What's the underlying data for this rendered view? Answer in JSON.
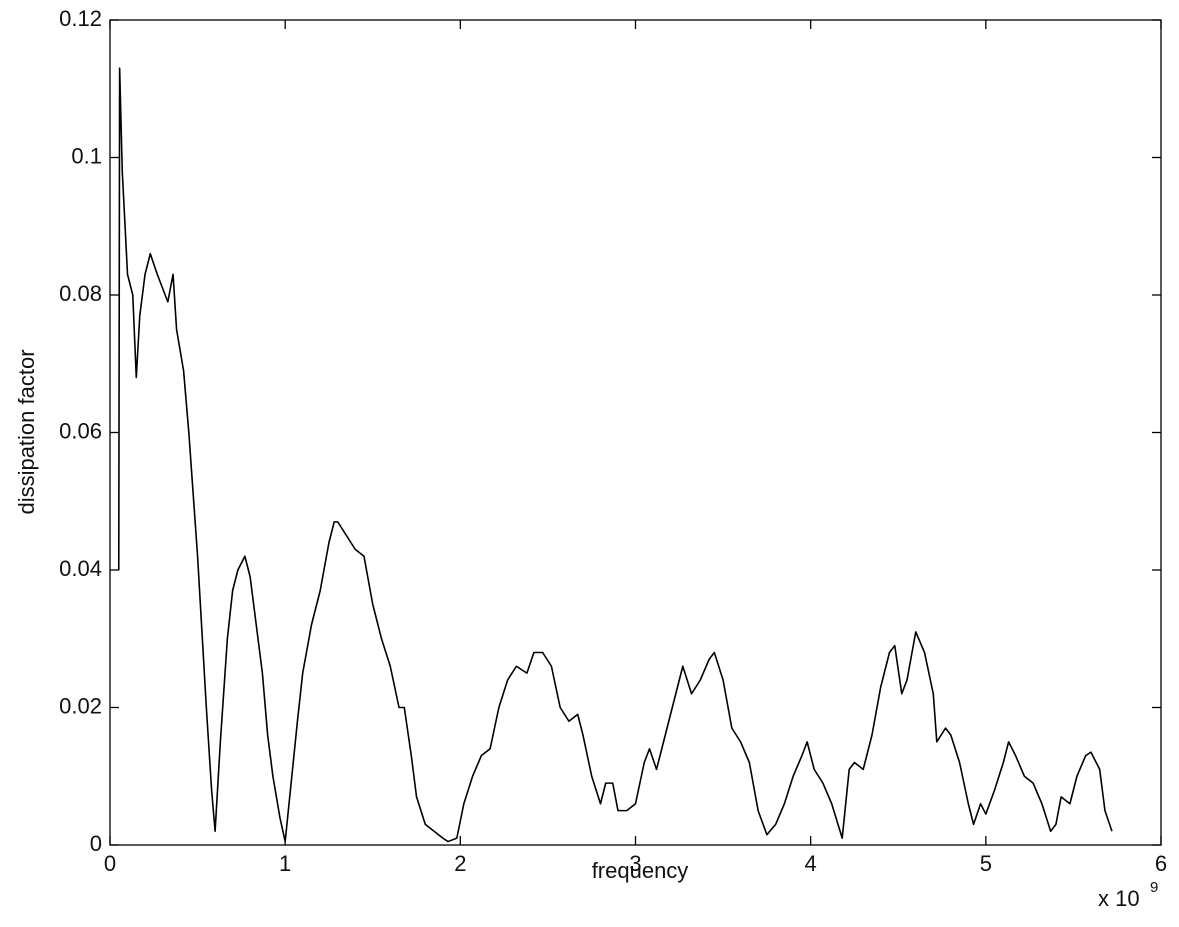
{
  "chart_data": {
    "type": "line",
    "xlabel": "frequency",
    "ylabel": "dissipation factor",
    "x_scale_base": "x 10",
    "x_scale_exponent": "9",
    "xlim": [
      0,
      6
    ],
    "xticks": [
      0,
      1,
      2,
      3,
      4,
      5,
      6
    ],
    "ylim": [
      0,
      0.12
    ],
    "yticks": [
      0,
      0.02,
      0.04,
      0.06,
      0.08,
      0.1,
      0.12
    ],
    "grid": false,
    "color": "#000000",
    "x": [
      0.05,
      0.055,
      0.07,
      0.1,
      0.13,
      0.15,
      0.17,
      0.2,
      0.23,
      0.27,
      0.3,
      0.33,
      0.36,
      0.38,
      0.42,
      0.45,
      0.5,
      0.55,
      0.58,
      0.6,
      0.63,
      0.67,
      0.7,
      0.73,
      0.77,
      0.8,
      0.83,
      0.87,
      0.9,
      0.93,
      0.97,
      1.0,
      1.03,
      1.07,
      1.1,
      1.15,
      1.2,
      1.25,
      1.28,
      1.3,
      1.35,
      1.4,
      1.45,
      1.5,
      1.55,
      1.6,
      1.65,
      1.68,
      1.72,
      1.75,
      1.8,
      1.85,
      1.9,
      1.93,
      1.98,
      2.02,
      2.07,
      2.12,
      2.17,
      2.22,
      2.27,
      2.32,
      2.38,
      2.42,
      2.47,
      2.52,
      2.57,
      2.62,
      2.67,
      2.7,
      2.75,
      2.8,
      2.83,
      2.87,
      2.9,
      2.95,
      3.0,
      3.05,
      3.08,
      3.12,
      3.17,
      3.22,
      3.27,
      3.32,
      3.37,
      3.42,
      3.45,
      3.5,
      3.55,
      3.6,
      3.65,
      3.7,
      3.75,
      3.8,
      3.85,
      3.9,
      3.95,
      3.98,
      4.02,
      4.07,
      4.12,
      4.18,
      4.22,
      4.25,
      4.3,
      4.35,
      4.4,
      4.45,
      4.48,
      4.52,
      4.55,
      4.6,
      4.65,
      4.7,
      4.72,
      4.77,
      4.8,
      4.85,
      4.9,
      4.93,
      4.97,
      5.0,
      5.05,
      5.1,
      5.13,
      5.17,
      5.22,
      5.27,
      5.32,
      5.37,
      5.4,
      5.43,
      5.48,
      5.52,
      5.57,
      5.6,
      5.65,
      5.68,
      5.72
    ],
    "values": [
      0.04,
      0.113,
      0.098,
      0.083,
      0.08,
      0.068,
      0.077,
      0.083,
      0.086,
      0.083,
      0.081,
      0.079,
      0.083,
      0.075,
      0.069,
      0.06,
      0.042,
      0.02,
      0.008,
      0.002,
      0.015,
      0.03,
      0.037,
      0.04,
      0.042,
      0.039,
      0.033,
      0.025,
      0.016,
      0.01,
      0.004,
      0.0005,
      0.008,
      0.018,
      0.025,
      0.032,
      0.037,
      0.044,
      0.047,
      0.047,
      0.045,
      0.043,
      0.042,
      0.035,
      0.03,
      0.026,
      0.02,
      0.02,
      0.013,
      0.007,
      0.003,
      0.002,
      0.001,
      0.0005,
      0.001,
      0.006,
      0.01,
      0.013,
      0.014,
      0.02,
      0.024,
      0.026,
      0.025,
      0.028,
      0.028,
      0.026,
      0.02,
      0.018,
      0.019,
      0.016,
      0.01,
      0.006,
      0.009,
      0.009,
      0.005,
      0.005,
      0.006,
      0.012,
      0.014,
      0.011,
      0.016,
      0.021,
      0.026,
      0.022,
      0.024,
      0.027,
      0.028,
      0.024,
      0.017,
      0.015,
      0.012,
      0.005,
      0.0015,
      0.003,
      0.006,
      0.01,
      0.013,
      0.015,
      0.011,
      0.009,
      0.006,
      0.001,
      0.011,
      0.012,
      0.011,
      0.016,
      0.023,
      0.028,
      0.029,
      0.022,
      0.024,
      0.031,
      0.028,
      0.022,
      0.015,
      0.017,
      0.016,
      0.012,
      0.006,
      0.003,
      0.006,
      0.0045,
      0.008,
      0.012,
      0.015,
      0.013,
      0.01,
      0.009,
      0.006,
      0.002,
      0.003,
      0.007,
      0.006,
      0.01,
      0.013,
      0.0135,
      0.011,
      0.005,
      0.002
    ]
  }
}
